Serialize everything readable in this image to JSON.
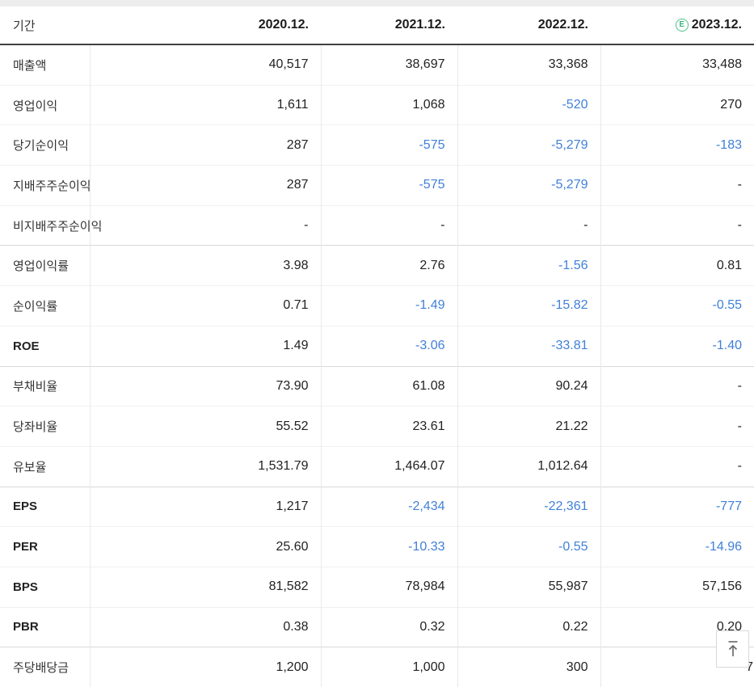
{
  "table": {
    "period_label": "기간",
    "columns": [
      "2020.12.",
      "2021.12.",
      "2022.12.",
      "2023.12."
    ],
    "estimate_badge": "E",
    "rows": [
      {
        "label": "매출액",
        "bold": false,
        "group": false,
        "values": [
          "40,517",
          "38,697",
          "33,368",
          "33,488"
        ]
      },
      {
        "label": "영업이익",
        "bold": false,
        "group": false,
        "values": [
          "1,611",
          "1,068",
          "-520",
          "270"
        ]
      },
      {
        "label": "당기순이익",
        "bold": false,
        "group": false,
        "values": [
          "287",
          "-575",
          "-5,279",
          "-183"
        ]
      },
      {
        "label": "지배주주순이익",
        "bold": false,
        "group": false,
        "values": [
          "287",
          "-575",
          "-5,279",
          "-"
        ]
      },
      {
        "label": "비지배주주순이익",
        "bold": false,
        "group": false,
        "values": [
          "-",
          "-",
          "-",
          "-"
        ]
      },
      {
        "label": "영업이익률",
        "bold": false,
        "group": true,
        "values": [
          "3.98",
          "2.76",
          "-1.56",
          "0.81"
        ]
      },
      {
        "label": "순이익률",
        "bold": false,
        "group": false,
        "values": [
          "0.71",
          "-1.49",
          "-15.82",
          "-0.55"
        ]
      },
      {
        "label": "ROE",
        "bold": true,
        "group": false,
        "values": [
          "1.49",
          "-3.06",
          "-33.81",
          "-1.40"
        ]
      },
      {
        "label": "부채비율",
        "bold": false,
        "group": true,
        "values": [
          "73.90",
          "61.08",
          "90.24",
          "-"
        ]
      },
      {
        "label": "당좌비율",
        "bold": false,
        "group": false,
        "values": [
          "55.52",
          "23.61",
          "21.22",
          "-"
        ]
      },
      {
        "label": "유보율",
        "bold": false,
        "group": false,
        "values": [
          "1,531.79",
          "1,464.07",
          "1,012.64",
          "-"
        ]
      },
      {
        "label": "EPS",
        "bold": true,
        "group": true,
        "values": [
          "1,217",
          "-2,434",
          "-22,361",
          "-777"
        ]
      },
      {
        "label": "PER",
        "bold": true,
        "group": false,
        "values": [
          "25.60",
          "-10.33",
          "-0.55",
          "-14.96"
        ]
      },
      {
        "label": "BPS",
        "bold": true,
        "group": false,
        "values": [
          "81,582",
          "78,984",
          "55,987",
          "57,156"
        ]
      },
      {
        "label": "PBR",
        "bold": true,
        "group": false,
        "values": [
          "0.38",
          "0.32",
          "0.22",
          "0.20"
        ]
      },
      {
        "label": "주당배당금",
        "bold": false,
        "group": true,
        "partial_last": true,
        "values": [
          "1,200",
          "1,000",
          "300",
          "7"
        ]
      }
    ]
  },
  "scroll_top_button": {
    "icon": "arrow-up-to-top-icon"
  },
  "colors": {
    "negative_value": "#4080d8",
    "estimate_badge_green": "#4ec289",
    "header_rule": "#404040",
    "group_separator": "#d9d9d9",
    "row_separator": "#f1f1f1",
    "column_separator": "#e9e9e9",
    "top_strip": "#ededed"
  }
}
